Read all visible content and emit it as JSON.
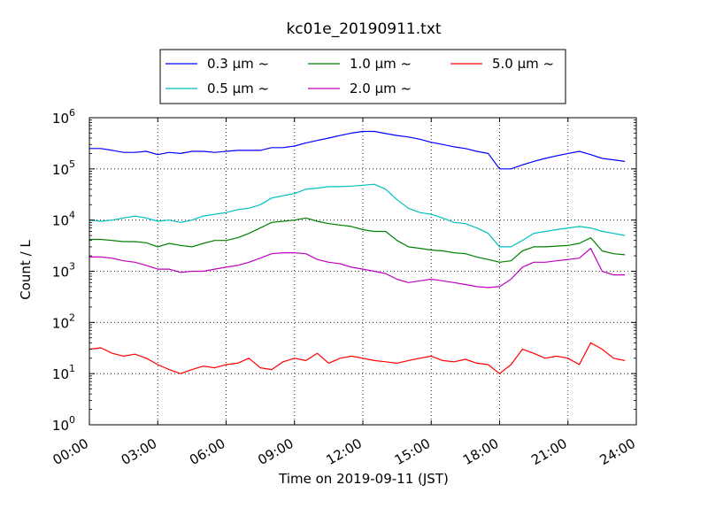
{
  "chart_data": {
    "type": "line",
    "title": "kc01e_20190911.txt",
    "xlabel": "Time on 2019-09-11 (JST)",
    "ylabel": "Count / L",
    "yscale": "log",
    "ylim": [
      1,
      1000000
    ],
    "xlim": [
      "00:00",
      "24:00"
    ],
    "x_ticks": [
      "00:00",
      "03:00",
      "06:00",
      "09:00",
      "12:00",
      "15:00",
      "18:00",
      "21:00",
      "24:00"
    ],
    "y_ticks": [
      {
        "base": "10",
        "exp": "0"
      },
      {
        "base": "10",
        "exp": "1"
      },
      {
        "base": "10",
        "exp": "2"
      },
      {
        "base": "10",
        "exp": "3"
      },
      {
        "base": "10",
        "exp": "4"
      },
      {
        "base": "10",
        "exp": "5"
      },
      {
        "base": "10",
        "exp": "6"
      }
    ],
    "grid": true,
    "legend_position": "top",
    "x_hours": [
      0,
      0.5,
      1,
      1.5,
      2,
      2.5,
      3,
      3.5,
      4,
      4.5,
      5,
      5.5,
      6,
      6.5,
      7,
      7.5,
      8,
      8.5,
      9,
      9.5,
      10,
      10.5,
      11,
      11.5,
      12,
      12.5,
      13,
      13.5,
      14,
      14.5,
      15,
      15.5,
      16,
      16.5,
      17,
      17.5,
      18,
      18.5,
      19,
      19.5,
      20,
      20.5,
      21,
      21.5,
      22,
      22.5,
      23,
      23.5
    ],
    "series": [
      {
        "name": "0.3 μm ~",
        "color": "#0000ff",
        "values": [
          250000,
          250000,
          230000,
          210000,
          210000,
          220000,
          190000,
          210000,
          200000,
          220000,
          220000,
          210000,
          220000,
          230000,
          230000,
          230000,
          260000,
          260000,
          280000,
          320000,
          360000,
          400000,
          450000,
          500000,
          540000,
          540000,
          490000,
          450000,
          420000,
          380000,
          330000,
          300000,
          270000,
          250000,
          220000,
          200000,
          100000,
          100000,
          120000,
          140000,
          160000,
          180000,
          200000,
          220000,
          190000,
          160000,
          150000,
          140000
        ]
      },
      {
        "name": "0.5 μm ~",
        "color": "#00bfbf",
        "values": [
          10000,
          9500,
          10000,
          11000,
          12000,
          11000,
          9500,
          10000,
          9000,
          10000,
          12000,
          13000,
          14000,
          16000,
          17000,
          20000,
          27000,
          30000,
          33000,
          40000,
          42000,
          45000,
          45000,
          46000,
          48000,
          50000,
          40000,
          25000,
          17000,
          14000,
          13000,
          11000,
          9000,
          8500,
          7000,
          5500,
          3000,
          3000,
          4000,
          5500,
          6000,
          6500,
          7000,
          7500,
          7000,
          6000,
          5500,
          5000
        ]
      },
      {
        "name": "1.0 μm ~",
        "color": "#008000",
        "values": [
          4200,
          4200,
          4000,
          3800,
          3800,
          3600,
          3000,
          3500,
          3200,
          3000,
          3500,
          4000,
          4000,
          4500,
          5500,
          7000,
          9000,
          9500,
          10000,
          11000,
          9500,
          8500,
          8000,
          7500,
          6500,
          6000,
          6000,
          4000,
          3000,
          2800,
          2600,
          2500,
          2300,
          2200,
          1900,
          1700,
          1500,
          1600,
          2500,
          3000,
          3000,
          3100,
          3200,
          3500,
          4500,
          2500,
          2200,
          2100
        ]
      },
      {
        "name": "2.0 μm ~",
        "color": "#bf00bf",
        "values": [
          1900,
          1900,
          1800,
          1600,
          1500,
          1300,
          1100,
          1100,
          950,
          1000,
          1000,
          1100,
          1200,
          1300,
          1500,
          1800,
          2200,
          2300,
          2300,
          2200,
          1700,
          1500,
          1400,
          1200,
          1100,
          1000,
          900,
          700,
          600,
          650,
          700,
          650,
          600,
          550,
          500,
          480,
          500,
          700,
          1200,
          1500,
          1500,
          1600,
          1700,
          1800,
          2800,
          1000,
          850,
          850
        ]
      },
      {
        "name": "5.0 μm ~",
        "color": "#ff0000",
        "values": [
          30,
          32,
          25,
          22,
          24,
          20,
          15,
          12,
          10,
          12,
          14,
          13,
          15,
          16,
          20,
          13,
          12,
          17,
          20,
          18,
          25,
          16,
          20,
          22,
          20,
          18,
          17,
          16,
          18,
          20,
          22,
          18,
          17,
          19,
          16,
          15,
          10,
          15,
          30,
          25,
          20,
          22,
          20,
          15,
          40,
          30,
          20,
          18
        ]
      }
    ]
  }
}
